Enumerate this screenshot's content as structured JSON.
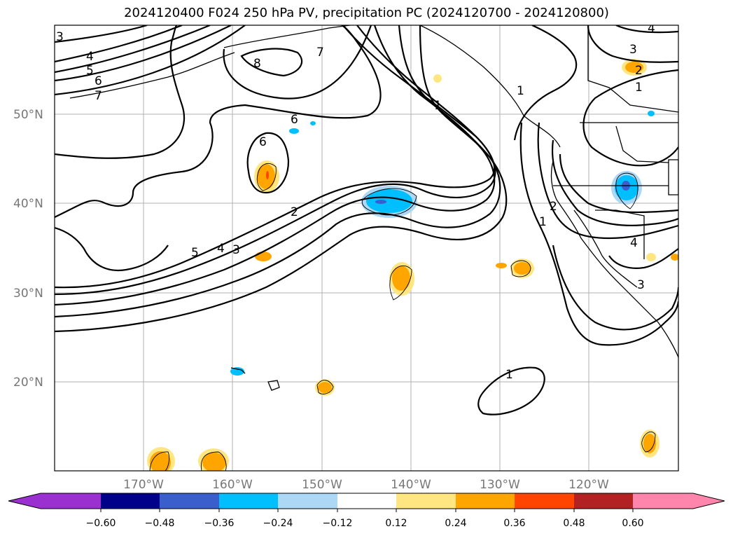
{
  "title": "2024120400 F024 250 hPa PV, precipitation PC (2024120700 - 2024120800)",
  "map": {
    "lon_range": [
      -180,
      -110
    ],
    "lat_range": [
      10,
      60
    ],
    "lat_ticks": [
      {
        "value": 20,
        "label": "20°N"
      },
      {
        "value": 30,
        "label": "30°N"
      },
      {
        "value": 40,
        "label": "40°N"
      },
      {
        "value": 50,
        "label": "50°N"
      }
    ],
    "lon_ticks": [
      {
        "value": -170,
        "label": "170°W"
      },
      {
        "value": -160,
        "label": "160°W"
      },
      {
        "value": -150,
        "label": "150°W"
      },
      {
        "value": -140,
        "label": "140°W"
      },
      {
        "value": -130,
        "label": "130°W"
      },
      {
        "value": -120,
        "label": "120°W"
      }
    ],
    "grid": true,
    "contour_labels": [
      "3",
      "4",
      "5",
      "6",
      "7",
      "8",
      "7",
      "6",
      "6",
      "6",
      "2",
      "5",
      "4",
      "3",
      "1",
      "1",
      "2",
      "1",
      "1",
      "4",
      "3",
      "3",
      "2",
      "1",
      "4"
    ]
  },
  "colorbar": {
    "ticks": [
      "−0.60",
      "−0.48",
      "−0.36",
      "−0.24",
      "−0.12",
      "0.12",
      "0.24",
      "0.36",
      "0.48",
      "0.60"
    ],
    "colors": [
      "#9b30d0",
      "#00008b",
      "#3a5fcd",
      "#00bfff",
      "#add8f5",
      "#ffffff",
      "#ffe680",
      "#ffa500",
      "#ff4500",
      "#b22222",
      "#ff85ad"
    ],
    "extend": "both"
  },
  "colors": {
    "grid": "#b0b0b0",
    "tick_text": "#777777",
    "contour": "#000000"
  }
}
